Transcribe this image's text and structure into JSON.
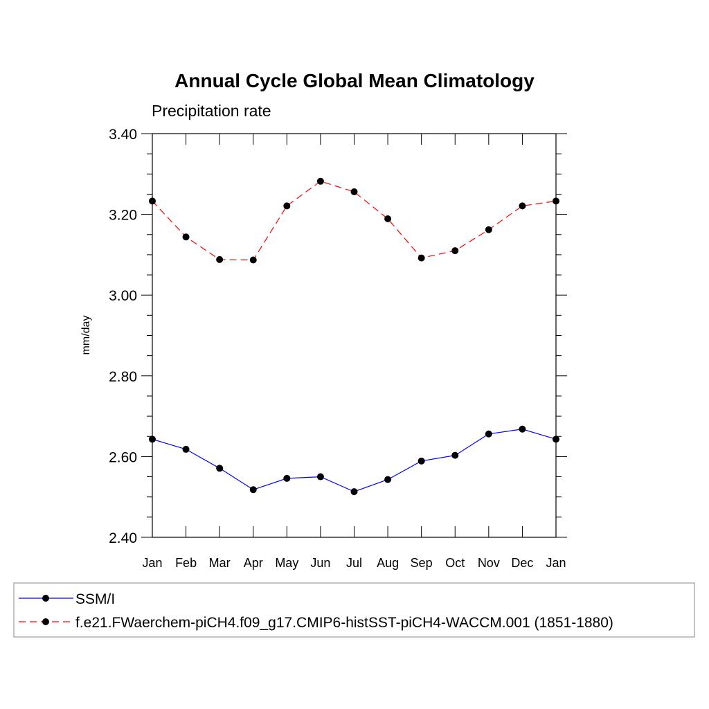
{
  "chart_data": {
    "type": "line",
    "title": "Annual Cycle Global Mean Climatology",
    "subtitle": "Precipitation rate",
    "xlabel": "",
    "ylabel": "mm/day",
    "categories": [
      "Jan",
      "Feb",
      "Mar",
      "Apr",
      "May",
      "Jun",
      "Jul",
      "Aug",
      "Sep",
      "Oct",
      "Nov",
      "Dec",
      "Jan"
    ],
    "ylim": [
      2.4,
      3.4
    ],
    "yticks": [
      "2.40",
      "2.60",
      "2.80",
      "3.00",
      "3.20",
      "3.40"
    ],
    "grid": false,
    "legend_position": "bottom",
    "series": [
      {
        "name": "SSM/I",
        "color": "#0000ff",
        "dash": "solid",
        "values": [
          2.643,
          2.618,
          2.571,
          2.518,
          2.546,
          2.55,
          2.513,
          2.543,
          2.589,
          2.603,
          2.656,
          2.668,
          2.643
        ]
      },
      {
        "name": "f.e21.FWaerchem-piCH4.f09_g17.CMIP6-histSST-piCH4-WACCM.001 (1851-1880)",
        "color": "#ff0000",
        "dash": "dashed",
        "values": [
          3.233,
          3.144,
          3.088,
          3.087,
          3.221,
          3.282,
          3.256,
          3.189,
          3.092,
          3.11,
          3.162,
          3.221,
          3.233
        ]
      }
    ]
  }
}
